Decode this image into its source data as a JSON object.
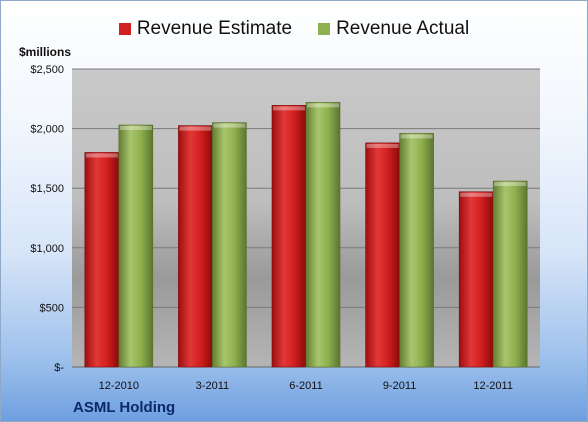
{
  "chart_data": {
    "type": "bar",
    "title": "",
    "ylabel": "$millions",
    "xlabel": "",
    "categories": [
      "12-2010",
      "3-2011",
      "6-2011",
      "9-2011",
      "12-2011"
    ],
    "series": [
      {
        "name": "Revenue Estimate",
        "values": [
          1800,
          2025,
          2195,
          1880,
          1470
        ],
        "color": "#d21f1f"
      },
      {
        "name": "Revenue Actual",
        "values": [
          2030,
          2050,
          2220,
          1960,
          1560
        ],
        "color": "#8fb04e"
      }
    ],
    "ylim": [
      0,
      2500
    ],
    "yticks": [
      0,
      500,
      1000,
      1500,
      2000,
      2500
    ],
    "ytick_labels": [
      "$-",
      "$500",
      "$1,000",
      "$1,500",
      "$2,000",
      "$2,500"
    ],
    "grid": true,
    "legend_position": "top"
  },
  "footer": {
    "company": "ASML Holding"
  }
}
